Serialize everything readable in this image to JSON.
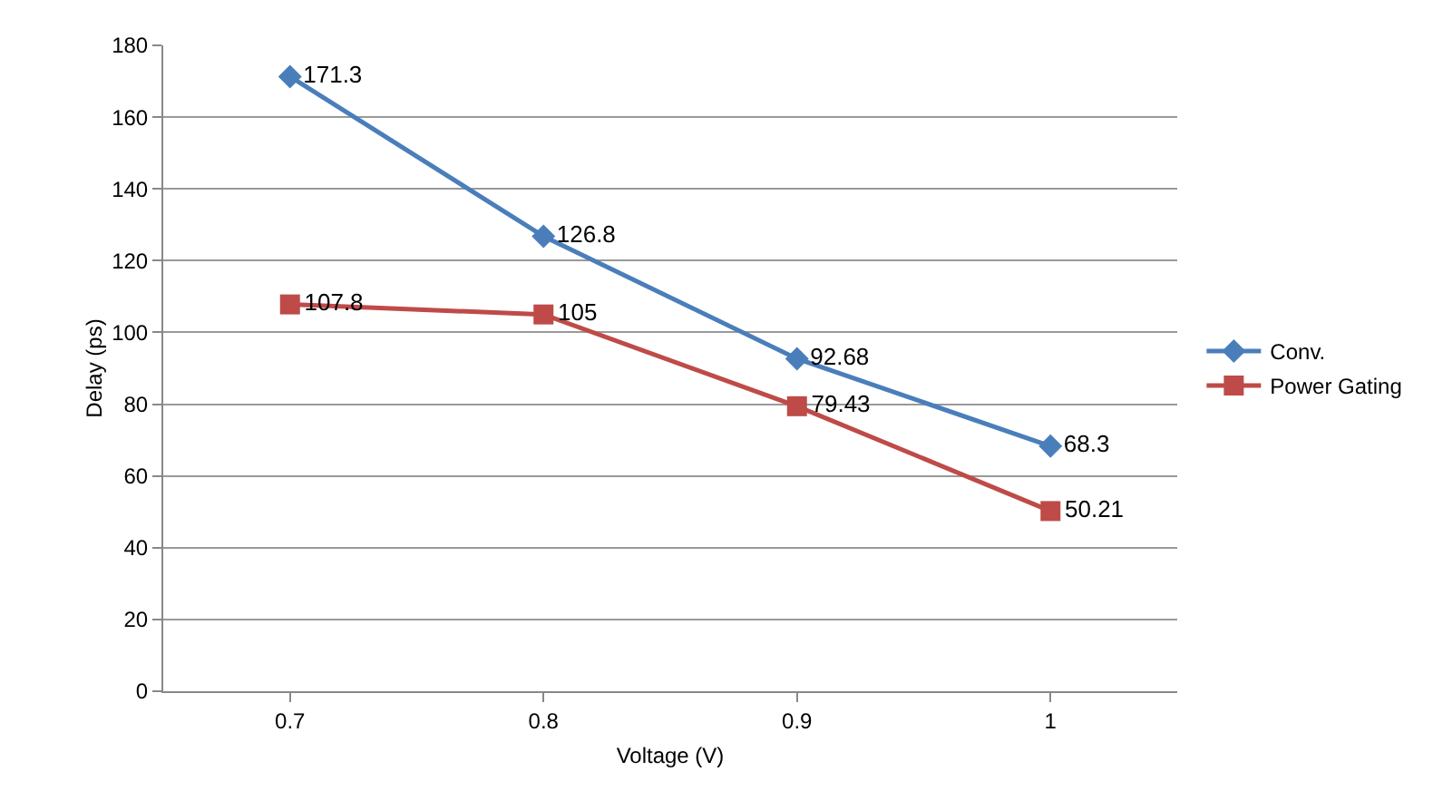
{
  "chart_data": {
    "type": "line",
    "xlabel": "Voltage (V)",
    "ylabel": "Delay (ps)",
    "categories": [
      "0.7",
      "0.8",
      "0.9",
      "1"
    ],
    "series": [
      {
        "name": "Conv.",
        "color": "#4a7ebb",
        "marker": "diamond",
        "values": [
          171.3,
          126.8,
          92.68,
          68.3
        ]
      },
      {
        "name": "Power Gating",
        "color": "#be4b48",
        "marker": "square",
        "values": [
          107.8,
          105,
          79.43,
          50.21
        ]
      }
    ],
    "ylim": [
      0,
      180
    ],
    "yticks": [
      0,
      20,
      40,
      60,
      80,
      100,
      120,
      140,
      160,
      180
    ],
    "grid": "y",
    "legend": "right",
    "data_labels": true
  }
}
